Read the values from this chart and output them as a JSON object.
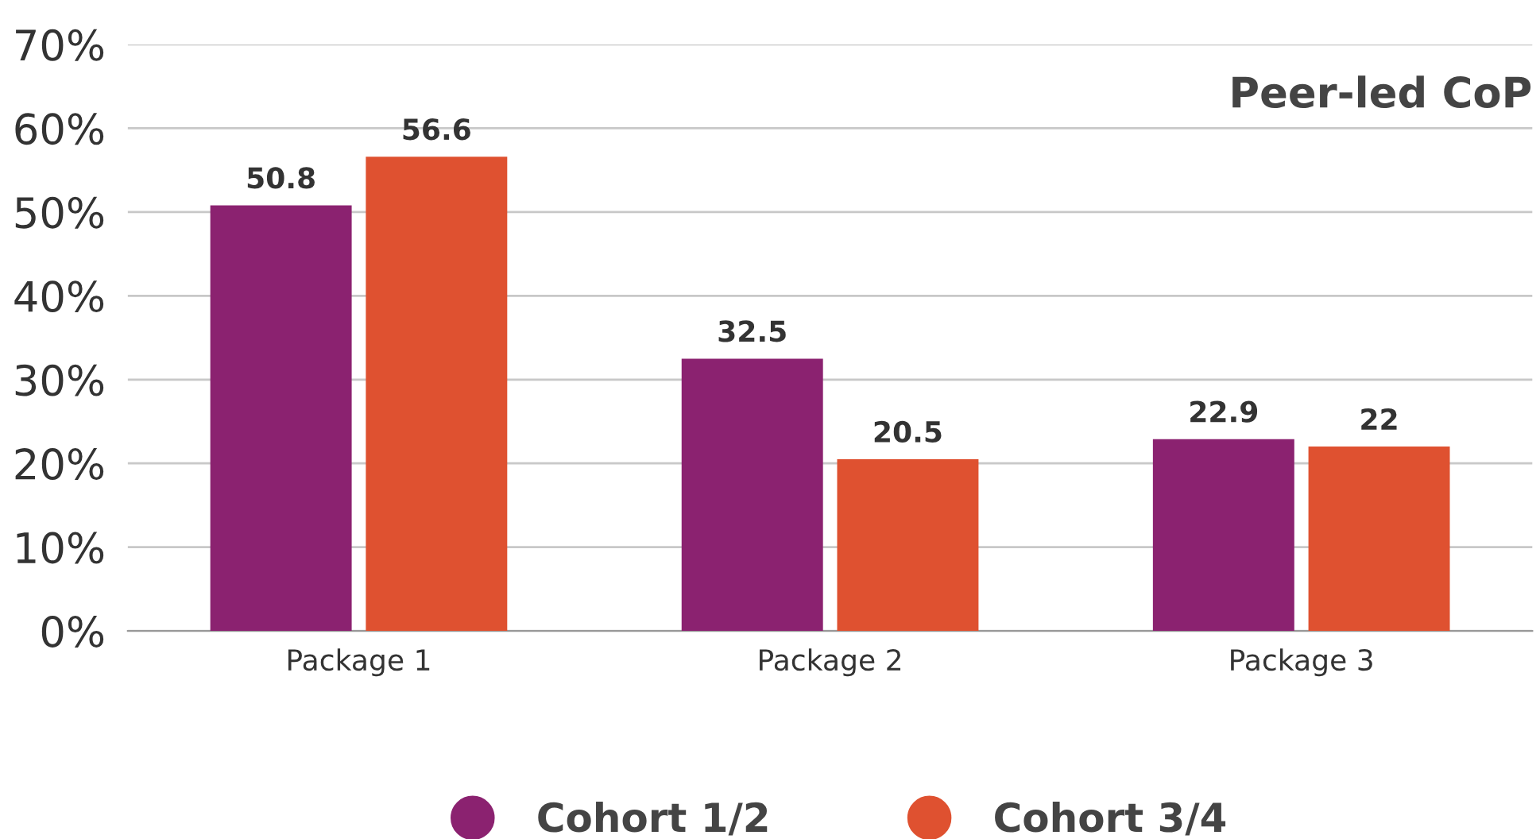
{
  "chart_data": {
    "type": "bar",
    "title": "Peer-led CoP",
    "categories": [
      "Package 1",
      "Package 2",
      "Package 3"
    ],
    "series": [
      {
        "name": "Cohort 1/2",
        "color": "#8b2270",
        "values": [
          50.8,
          32.5,
          22.9
        ]
      },
      {
        "name": "Cohort 3/4",
        "color": "#df5130",
        "values": [
          56.6,
          20.5,
          22
        ]
      }
    ],
    "ylim": [
      0,
      70
    ],
    "yticks": [
      {
        "value": 0,
        "label": "0%"
      },
      {
        "value": 10,
        "label": "10%"
      },
      {
        "value": 20,
        "label": "20%"
      },
      {
        "value": 30,
        "label": "30%"
      },
      {
        "value": 40,
        "label": "40%"
      },
      {
        "value": 50,
        "label": "50%"
      },
      {
        "value": 60,
        "label": "60%"
      },
      {
        "value": 70,
        "label": "70%"
      }
    ],
    "grid": "y",
    "legend": "bottom",
    "data_labels": true
  }
}
